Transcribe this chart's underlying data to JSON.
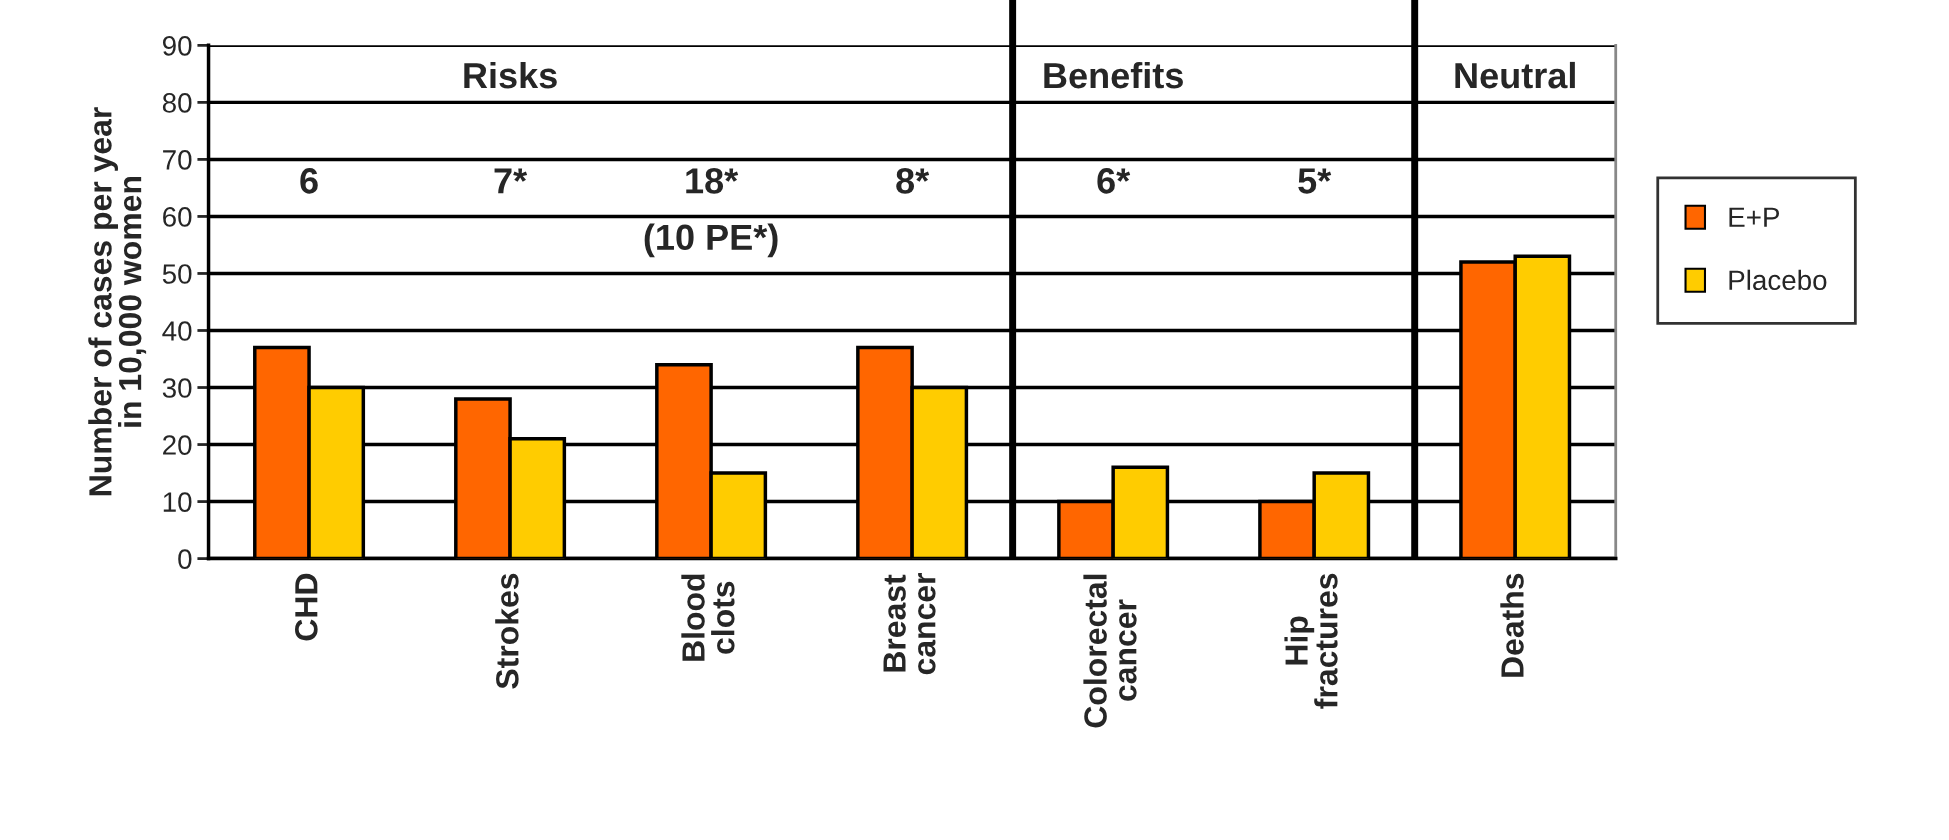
{
  "chart_data": {
    "type": "bar",
    "ylabel": "Number of cases per year\nin 10,000 women",
    "categories": [
      "CHD",
      "Strokes",
      "Blood\nclots",
      "Breast\ncancer",
      "Colorectal\ncancer",
      "Hip\nfractures",
      "Deaths"
    ],
    "series": [
      {
        "name": "E+P",
        "color": "#ff6600",
        "values": [
          37,
          28,
          34,
          37,
          10,
          10,
          52
        ]
      },
      {
        "name": "Placebo",
        "color": "#ffcc00",
        "values": [
          30,
          21,
          15,
          30,
          16,
          15,
          53
        ]
      }
    ],
    "ylim": [
      0,
      90
    ],
    "yticks": [
      0,
      10,
      20,
      30,
      40,
      50,
      60,
      70,
      80,
      90
    ],
    "grid": "y",
    "legend": "right",
    "annotations": [
      "Risks",
      "Benefits",
      "Neutral",
      "6",
      "7*",
      "18*",
      "(10 PE*)",
      "8*",
      "6*",
      "5*"
    ]
  }
}
